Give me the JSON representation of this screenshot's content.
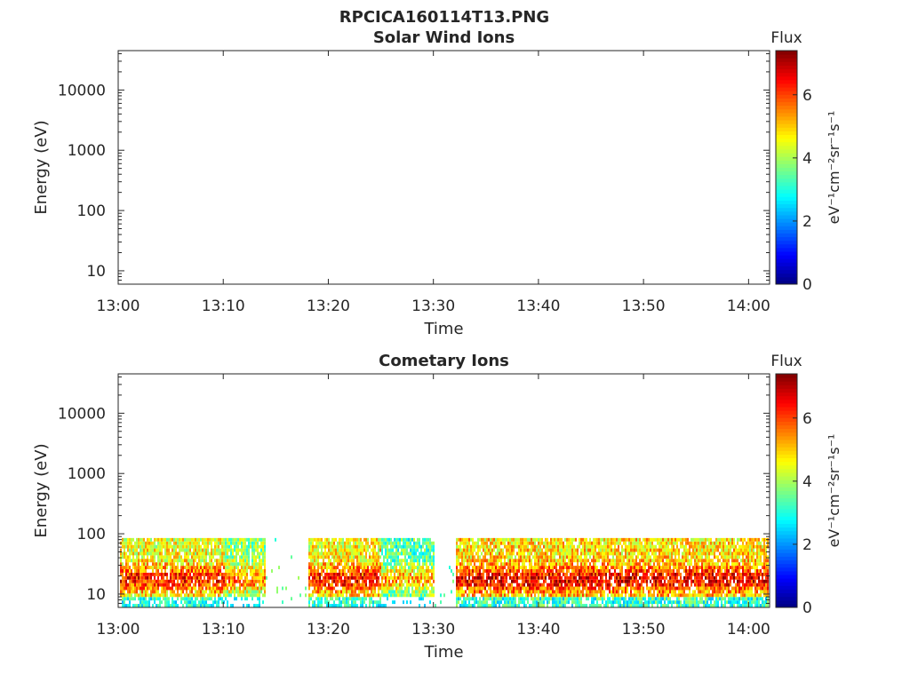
{
  "figure": {
    "filename": "RPCICA160114T13.PNG"
  },
  "chart_data": [
    {
      "type": "heatmap",
      "title": "Solar Wind Ions",
      "xlabel": "Time",
      "ylabel": "Energy (eV)",
      "x_range": [
        "13:00",
        "14:02"
      ],
      "x_ticks": [
        "13:00",
        "13:10",
        "13:20",
        "13:30",
        "13:40",
        "13:50",
        "14:00"
      ],
      "y_scale": "log",
      "y_range": [
        6,
        45000
      ],
      "y_ticks": [
        "10",
        "100",
        "1000",
        "10000"
      ],
      "colorbar": {
        "title": "Flux",
        "label": "eV⁻¹cm⁻²sr⁻¹s⁻¹",
        "range": [
          0,
          7.4
        ],
        "ticks": [
          "0",
          "2",
          "4",
          "6"
        ],
        "colormap": "jet"
      },
      "data_description_values": []
    },
    {
      "type": "heatmap",
      "title": "Cometary Ions",
      "xlabel": "Time",
      "ylabel": "Energy (eV)",
      "x_range": [
        "13:00",
        "14:02"
      ],
      "x_ticks": [
        "13:00",
        "13:10",
        "13:20",
        "13:30",
        "13:40",
        "13:50",
        "14:00"
      ],
      "y_scale": "log",
      "y_range": [
        6,
        45000
      ],
      "y_ticks": [
        "10",
        "100",
        "1000",
        "10000"
      ],
      "colorbar": {
        "title": "Flux",
        "label": "eV⁻¹cm⁻²sr⁻¹s⁻¹",
        "range": [
          0,
          7.4
        ],
        "ticks": [
          "0",
          "2",
          "4",
          "6"
        ],
        "colormap": "jet"
      },
      "energy_band_eV": [
        10,
        80
      ],
      "activity_intervals": [
        {
          "start": "13:00",
          "end": "13:10",
          "level": 4.5
        },
        {
          "start": "13:10",
          "end": "13:14",
          "level": 3.8
        },
        {
          "start": "13:18",
          "end": "13:25",
          "level": 4.6
        },
        {
          "start": "13:25",
          "end": "13:30",
          "level": 3.4
        },
        {
          "start": "13:32",
          "end": "14:02",
          "level": 4.8
        }
      ]
    }
  ]
}
